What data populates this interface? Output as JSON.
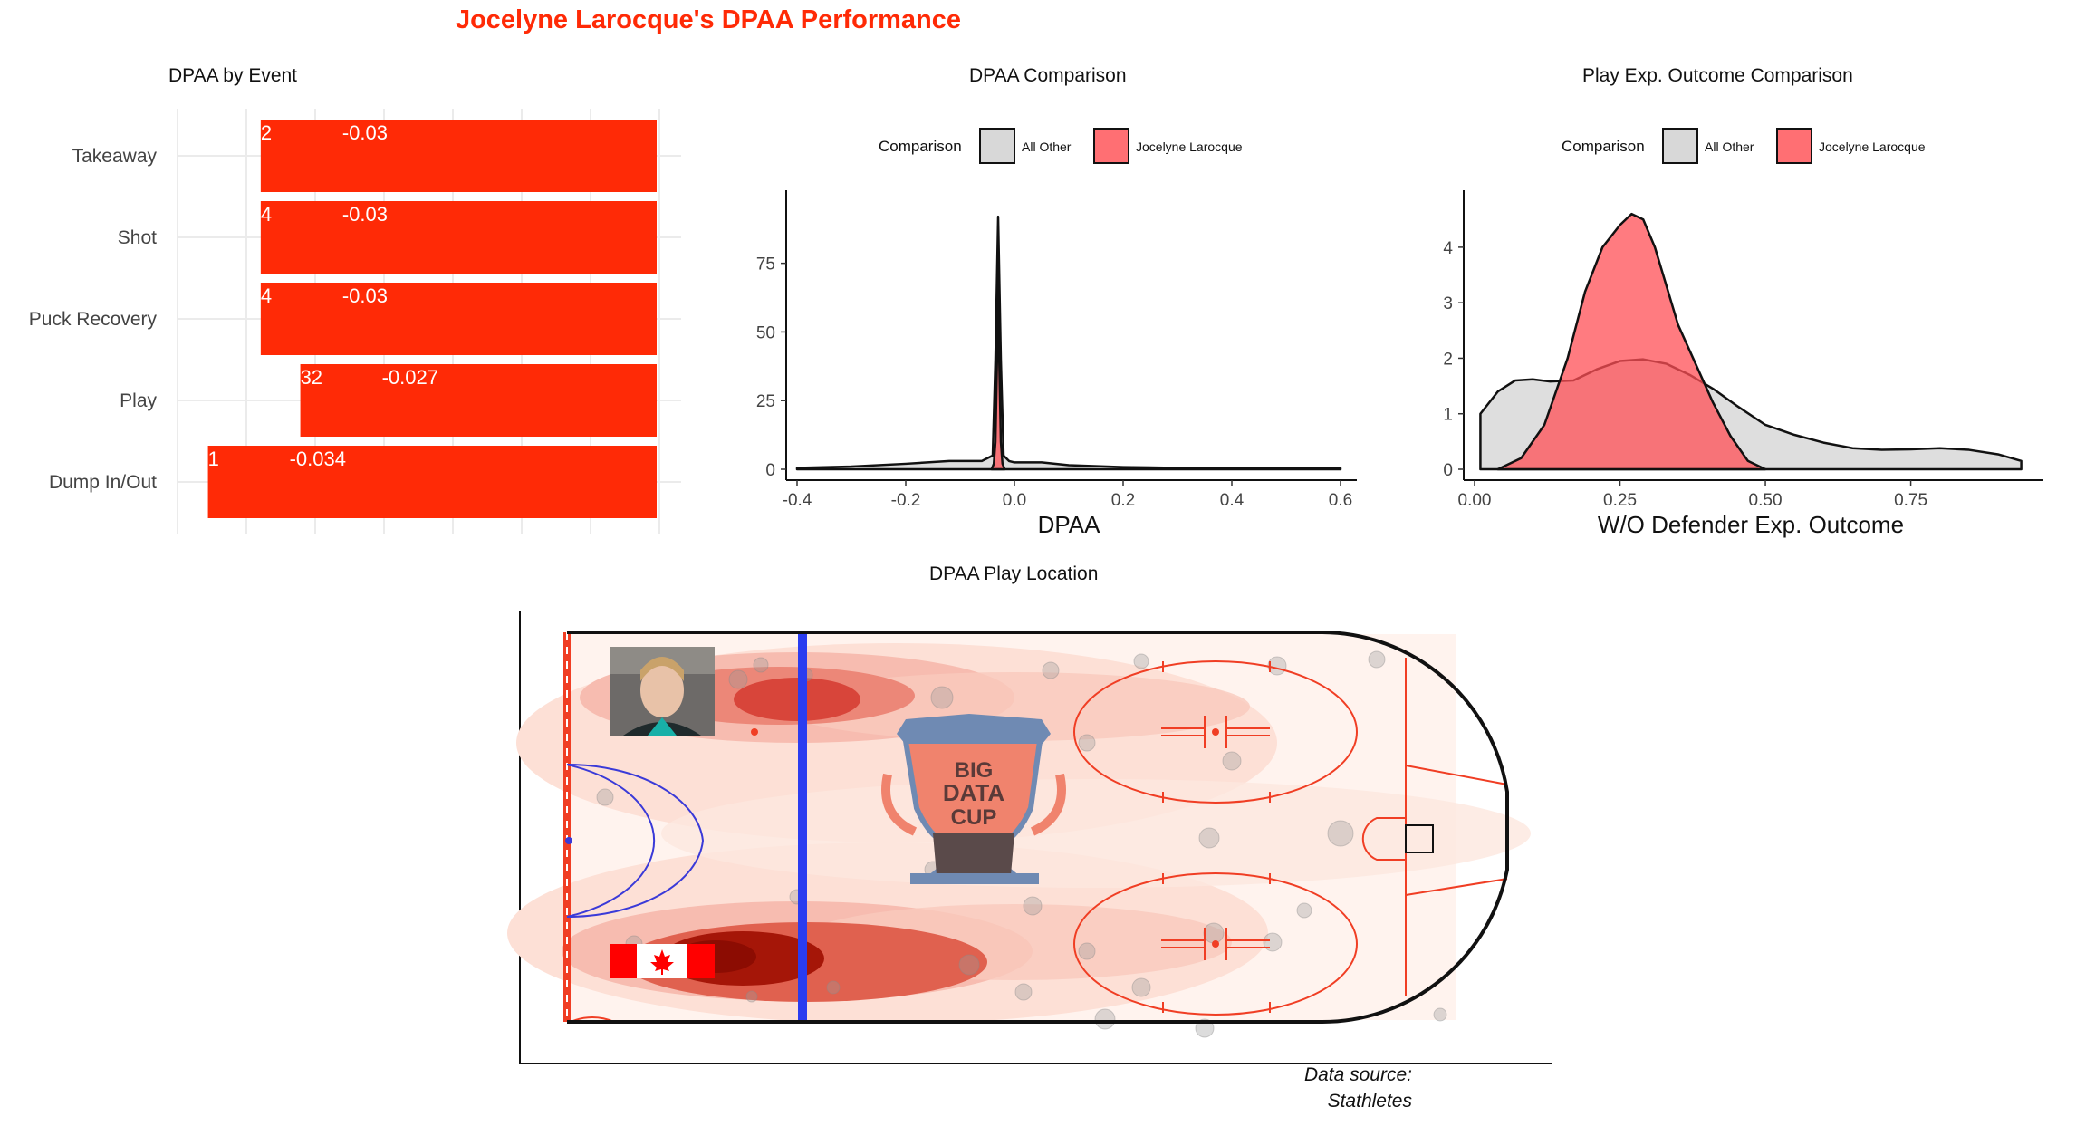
{
  "title": "Jocelyne Larocque's DPAA Performance",
  "caption": {
    "line1": "Data source:",
    "line2": "Stathletes"
  },
  "colors": {
    "accent": "#ff2a06",
    "player_fill": "#ff6f73",
    "other_fill": "#d8d8d8",
    "rink_red": "#f03e24",
    "blue_line": "#2a3cf0"
  },
  "chart_data": [
    {
      "type": "bar",
      "title": "DPAA by Event",
      "orientation": "horizontal",
      "categories": [
        "Takeaway",
        "Shot",
        "Puck Recovery",
        "Play",
        "Dump In/Out"
      ],
      "counts": [
        "2",
        "4",
        "4",
        "32",
        "1"
      ],
      "labels": [
        "-0.03",
        "-0.03",
        "-0.03",
        "-0.027",
        "-0.034"
      ],
      "values": [
        -0.03,
        -0.03,
        -0.03,
        -0.027,
        -0.034
      ],
      "grid": true
    },
    {
      "type": "area",
      "title": "DPAA Comparison",
      "xlabel": "DPAA",
      "legend": {
        "title": "Comparison",
        "entries": [
          "All Other",
          "Jocelyne Larocque"
        ],
        "position": "top"
      },
      "xlim": [
        -0.4,
        0.6
      ],
      "ylim": [
        0,
        95
      ],
      "xticks": [
        "-0.4",
        "-0.2",
        "0.0",
        "0.2",
        "0.4",
        "0.6"
      ],
      "yticks": [
        "0",
        "25",
        "50",
        "75"
      ],
      "series": [
        {
          "name": "All Other",
          "x": [
            -0.4,
            -0.3,
            -0.2,
            -0.12,
            -0.06,
            -0.04,
            -0.035,
            -0.03,
            -0.025,
            -0.02,
            -0.01,
            0.0,
            0.05,
            0.1,
            0.2,
            0.3,
            0.4,
            0.5,
            0.6
          ],
          "y": [
            0.5,
            1.0,
            2.0,
            3.0,
            3.0,
            5.0,
            40.0,
            92.0,
            40.0,
            5.0,
            3.0,
            2.5,
            2.5,
            1.5,
            0.8,
            0.5,
            0.5,
            0.5,
            0.4
          ]
        },
        {
          "name": "Jocelyne Larocque",
          "x": [
            -0.042,
            -0.038,
            -0.035,
            -0.032,
            -0.03,
            -0.028,
            -0.025,
            -0.022,
            -0.018
          ],
          "y": [
            0.0,
            2.0,
            10.0,
            40.0,
            75.0,
            40.0,
            10.0,
            2.0,
            0.0
          ]
        }
      ]
    },
    {
      "type": "area",
      "title": "Play Exp. Outcome Comparison",
      "xlabel": "W/O Defender Exp. Outcome",
      "legend": {
        "title": "Comparison",
        "entries": [
          "All Other",
          "Jocelyne Larocque"
        ],
        "position": "top"
      },
      "xlim": [
        0.0,
        0.95
      ],
      "ylim": [
        0,
        4.7
      ],
      "xticks": [
        "0.00",
        "0.25",
        "0.50",
        "0.75"
      ],
      "yticks": [
        "0",
        "1",
        "2",
        "3",
        "4"
      ],
      "series": [
        {
          "name": "All Other",
          "x": [
            0.01,
            0.04,
            0.07,
            0.1,
            0.13,
            0.17,
            0.21,
            0.25,
            0.29,
            0.33,
            0.37,
            0.41,
            0.45,
            0.5,
            0.55,
            0.6,
            0.65,
            0.7,
            0.75,
            0.8,
            0.85,
            0.9,
            0.94
          ],
          "y": [
            1.0,
            1.4,
            1.6,
            1.62,
            1.58,
            1.6,
            1.8,
            1.95,
            1.98,
            1.9,
            1.7,
            1.45,
            1.15,
            0.8,
            0.62,
            0.48,
            0.38,
            0.35,
            0.36,
            0.38,
            0.35,
            0.27,
            0.15
          ]
        },
        {
          "name": "Jocelyne Larocque",
          "x": [
            0.04,
            0.08,
            0.12,
            0.16,
            0.19,
            0.22,
            0.25,
            0.27,
            0.29,
            0.31,
            0.33,
            0.35,
            0.38,
            0.41,
            0.44,
            0.47,
            0.5
          ],
          "y": [
            0.0,
            0.2,
            0.8,
            2.0,
            3.2,
            4.0,
            4.4,
            4.6,
            4.5,
            4.0,
            3.3,
            2.6,
            1.9,
            1.2,
            0.6,
            0.15,
            0.0
          ]
        }
      ]
    },
    {
      "type": "heatmap",
      "title": "DPAA Play Location",
      "logo_text": [
        "BIG",
        "DATA",
        "CUP"
      ]
    }
  ]
}
